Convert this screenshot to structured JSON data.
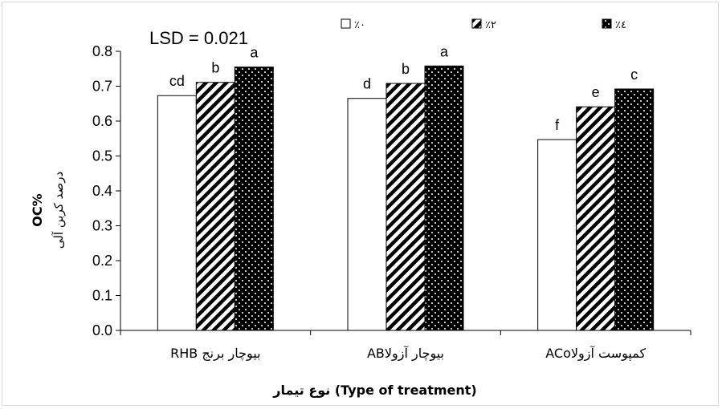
{
  "chart_data": {
    "type": "bar",
    "annotation": "LSD = 0.021",
    "ylabel": "OC%",
    "ylabel_sub": "درصد کربن آلی",
    "xlabel": "نوع تیمار (Type of treatment)",
    "ylim": [
      0,
      0.8
    ],
    "yticks": [
      "0.0",
      "0.1",
      "0.2",
      "0.3",
      "0.4",
      "0.5",
      "0.6",
      "0.7",
      "0.8"
    ],
    "categories": [
      "بیوچار برنج RHB",
      "بیوچار آزولاAB",
      "کمپوست آزولاACo"
    ],
    "series": [
      {
        "name": "٪۰",
        "pattern": "white",
        "values": [
          0.673,
          0.665,
          0.547
        ],
        "labels": [
          "cd",
          "d",
          "f"
        ]
      },
      {
        "name": "٪۲",
        "pattern": "hatch",
        "values": [
          0.711,
          0.708,
          0.641
        ],
        "labels": [
          "b",
          "b",
          "e"
        ]
      },
      {
        "name": "٪٤",
        "pattern": "dots",
        "values": [
          0.755,
          0.758,
          0.692
        ],
        "labels": [
          "a",
          "a",
          "c"
        ]
      }
    ],
    "legend_position": "top",
    "grid": false,
    "colors": {
      "bar_fill": "#ffffff",
      "bar_pattern": "#000000",
      "axis": "#000000",
      "frame": "#d9d9d9"
    }
  }
}
